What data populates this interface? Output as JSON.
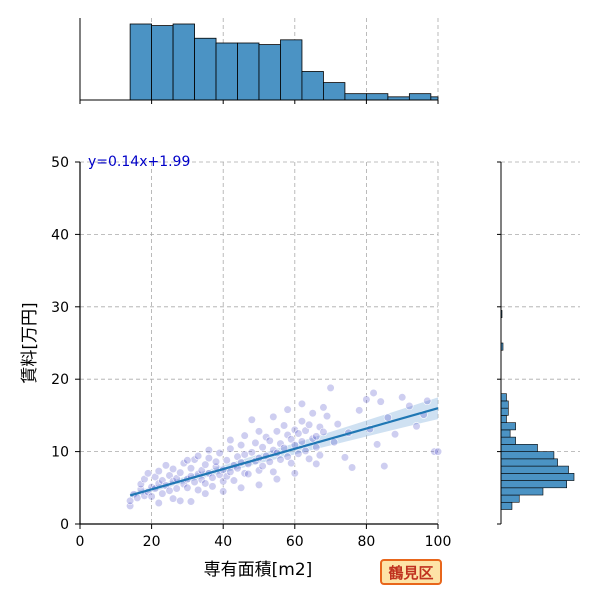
{
  "chart_data": {
    "type": "scatter",
    "title": "",
    "xlabel": "専有面積[m2]",
    "ylabel": "賃料[万円]",
    "xlim": [
      0,
      100
    ],
    "ylim": [
      0,
      50
    ],
    "x_ticks": [
      "0",
      "20",
      "40",
      "60",
      "80",
      "100"
    ],
    "y_ticks": [
      "0",
      "10",
      "20",
      "30",
      "40",
      "50"
    ],
    "grid": true,
    "regression": {
      "label": "y=0.14x+1.99",
      "slope": 0.14,
      "intercept": 1.99,
      "x_range": [
        14,
        100
      ]
    },
    "marginal_x_histogram": {
      "bin_edges": [
        14,
        20,
        26,
        32,
        38,
        44,
        50,
        56,
        62,
        68,
        74,
        80,
        86,
        92,
        98,
        100
      ],
      "counts": [
        48,
        47,
        48,
        39,
        36,
        36,
        35,
        38,
        18,
        11,
        4,
        4,
        2,
        4,
        2
      ]
    },
    "marginal_y_histogram": {
      "bin_edges": [
        2,
        3,
        4,
        5,
        6,
        7,
        8,
        9,
        10,
        11,
        12,
        13,
        14,
        15,
        16,
        17,
        18
      ],
      "counts": [
        6,
        10,
        23,
        36,
        40,
        37,
        31,
        29,
        20,
        8,
        5,
        8,
        3,
        4,
        4,
        3
      ]
    },
    "points": [
      [
        14,
        2.5
      ],
      [
        14,
        3.2
      ],
      [
        15,
        4.1
      ],
      [
        16,
        3.6
      ],
      [
        17,
        4.8
      ],
      [
        17,
        5.5
      ],
      [
        18,
        3.9
      ],
      [
        18,
        6.2
      ],
      [
        19,
        4.4
      ],
      [
        19,
        7.0
      ],
      [
        20,
        5.1
      ],
      [
        20,
        3.8
      ],
      [
        21,
        6.5
      ],
      [
        21,
        4.9
      ],
      [
        22,
        5.6
      ],
      [
        22,
        7.3
      ],
      [
        23,
        4.2
      ],
      [
        23,
        6.0
      ],
      [
        24,
        5.3
      ],
      [
        24,
        8.1
      ],
      [
        25,
        6.7
      ],
      [
        25,
        4.6
      ],
      [
        26,
        5.9
      ],
      [
        26,
        7.6
      ],
      [
        27,
        6.3
      ],
      [
        27,
        4.9
      ],
      [
        28,
        3.2
      ],
      [
        28,
        7.1
      ],
      [
        29,
        5.5
      ],
      [
        29,
        8.4
      ],
      [
        30,
        6.2
      ],
      [
        30,
        5.0
      ],
      [
        31,
        7.7
      ],
      [
        31,
        6.6
      ],
      [
        32,
        5.8
      ],
      [
        32,
        8.9
      ],
      [
        33,
        6.9
      ],
      [
        33,
        4.7
      ],
      [
        34,
        7.4
      ],
      [
        34,
        6.1
      ],
      [
        35,
        8.2
      ],
      [
        35,
        5.6
      ],
      [
        36,
        7.0
      ],
      [
        36,
        9.1
      ],
      [
        37,
        6.4
      ],
      [
        37,
        5.2
      ],
      [
        38,
        7.9
      ],
      [
        38,
        8.6
      ],
      [
        39,
        6.8
      ],
      [
        39,
        9.8
      ],
      [
        40,
        7.5
      ],
      [
        40,
        5.9
      ],
      [
        41,
        8.8
      ],
      [
        41,
        6.6
      ],
      [
        42,
        7.2
      ],
      [
        42,
        10.4
      ],
      [
        43,
        8.1
      ],
      [
        43,
        6.0
      ],
      [
        44,
        9.3
      ],
      [
        44,
        7.7
      ],
      [
        45,
        8.5
      ],
      [
        45,
        10.9
      ],
      [
        46,
        7.0
      ],
      [
        46,
        9.6
      ],
      [
        47,
        8.3
      ],
      [
        47,
        6.9
      ],
      [
        48,
        9.9
      ],
      [
        48,
        14.4
      ],
      [
        49,
        8.7
      ],
      [
        49,
        11.2
      ],
      [
        50,
        7.4
      ],
      [
        50,
        9.1
      ],
      [
        51,
        10.6
      ],
      [
        51,
        8.0
      ],
      [
        52,
        9.4
      ],
      [
        52,
        12.0
      ],
      [
        53,
        8.6
      ],
      [
        53,
        11.5
      ],
      [
        54,
        10.2
      ],
      [
        54,
        7.2
      ],
      [
        55,
        9.8
      ],
      [
        55,
        12.8
      ],
      [
        56,
        11.1
      ],
      [
        56,
        8.9
      ],
      [
        57,
        10.5
      ],
      [
        57,
        13.6
      ],
      [
        58,
        9.3
      ],
      [
        58,
        12.3
      ],
      [
        59,
        11.7
      ],
      [
        59,
        8.4
      ],
      [
        60,
        10.9
      ],
      [
        60,
        13.0
      ],
      [
        61,
        12.5
      ],
      [
        61,
        9.7
      ],
      [
        62,
        11.4
      ],
      [
        62,
        14.2
      ],
      [
        63,
        10.1
      ],
      [
        63,
        12.9
      ],
      [
        64,
        9.0
      ],
      [
        64,
        13.7
      ],
      [
        65,
        11.8
      ],
      [
        65,
        15.3
      ],
      [
        66,
        10.6
      ],
      [
        66,
        12.1
      ],
      [
        67,
        13.4
      ],
      [
        67,
        9.5
      ],
      [
        68,
        12.7
      ],
      [
        68,
        16.1
      ],
      [
        69,
        14.9
      ],
      [
        70,
        18.8
      ],
      [
        71,
        11.3
      ],
      [
        72,
        13.8
      ],
      [
        74,
        9.2
      ],
      [
        75,
        12.6
      ],
      [
        76,
        7.8
      ],
      [
        78,
        15.7
      ],
      [
        80,
        17.2
      ],
      [
        81,
        13.1
      ],
      [
        82,
        18.1
      ],
      [
        83,
        11.0
      ],
      [
        84,
        16.9
      ],
      [
        85,
        8.0
      ],
      [
        86,
        14.7
      ],
      [
        88,
        12.4
      ],
      [
        90,
        17.5
      ],
      [
        92,
        16.3
      ],
      [
        94,
        13.5
      ],
      [
        96,
        15.1
      ],
      [
        97,
        17.0
      ],
      [
        99,
        10.0
      ],
      [
        100,
        10.0
      ],
      [
        22,
        2.9
      ],
      [
        26,
        3.5
      ],
      [
        31,
        3.1
      ],
      [
        35,
        4.2
      ],
      [
        40,
        4.5
      ],
      [
        45,
        5.0
      ],
      [
        50,
        5.4
      ],
      [
        55,
        6.2
      ],
      [
        60,
        7.0
      ],
      [
        30,
        8.8
      ],
      [
        33,
        9.4
      ],
      [
        36,
        10.2
      ],
      [
        42,
        11.6
      ],
      [
        46,
        12.2
      ],
      [
        50,
        12.8
      ],
      [
        54,
        14.8
      ],
      [
        58,
        15.8
      ],
      [
        62,
        16.6
      ],
      [
        66,
        8.3
      ]
    ]
  },
  "badge": {
    "label": "鶴見区"
  },
  "colors": {
    "point": "#5050c8",
    "line": "#1f77b4",
    "band": "#a8c8e8",
    "bar": "#4b93c4",
    "badge_border": "#e8661b",
    "badge_bg": "#fde3a7",
    "badge_text": "#c0311f"
  }
}
